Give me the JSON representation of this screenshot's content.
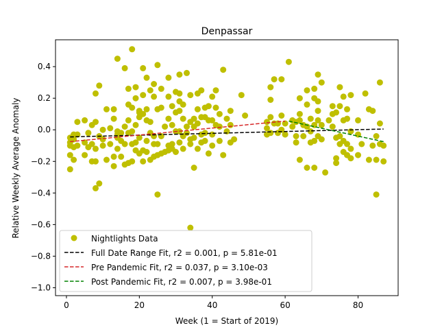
{
  "chart_data": {
    "type": "scatter",
    "title": "Denpassar",
    "xlabel": "Week (1 = Start of 2019)",
    "ylabel": "Relative Weekly Average Anomaly",
    "xlim": [
      -3,
      91
    ],
    "ylim": [
      -1.05,
      0.57
    ],
    "xticks": [
      0,
      20,
      40,
      60,
      80
    ],
    "yticks": [
      -1.0,
      -0.8,
      -0.6,
      -0.4,
      -0.2,
      0.0,
      0.2,
      0.4
    ],
    "ytick_labels": [
      "−1.0",
      "−0.8",
      "−0.6",
      "−0.4",
      "−0.2",
      "0.0",
      "0.2",
      "0.4"
    ],
    "grid": false,
    "legend_position": "bottom-left",
    "scatter_series": {
      "name": "Nightlights Data",
      "color": "#bfbf00",
      "points": [
        [
          1,
          -0.25
        ],
        [
          1,
          -0.16
        ],
        [
          1,
          -0.08
        ],
        [
          1,
          -0.05
        ],
        [
          1,
          -0.1
        ],
        [
          2,
          -0.03
        ],
        [
          2,
          -0.06
        ],
        [
          2,
          -0.19
        ],
        [
          2,
          -0.11
        ],
        [
          3,
          0.05
        ],
        [
          3,
          -0.03
        ],
        [
          3,
          -0.1
        ],
        [
          5,
          -0.08
        ],
        [
          5,
          -0.16
        ],
        [
          5,
          0.06
        ],
        [
          6,
          -0.02
        ],
        [
          6,
          -0.11
        ],
        [
          7,
          -0.2
        ],
        [
          7,
          0.03
        ],
        [
          7,
          -0.09
        ],
        [
          8,
          0.23
        ],
        [
          8,
          -0.2
        ],
        [
          8,
          -0.37
        ],
        [
          8,
          0.05
        ],
        [
          8,
          -0.12
        ],
        [
          9,
          0.28
        ],
        [
          9,
          -0.34
        ],
        [
          9,
          -0.04
        ],
        [
          10,
          -0.1
        ],
        [
          10,
          -0.06
        ],
        [
          10,
          0.0
        ],
        [
          11,
          0.13
        ],
        [
          11,
          -0.19
        ],
        [
          12,
          -0.09
        ],
        [
          12,
          0.01
        ],
        [
          13,
          0.07
        ],
        [
          13,
          0.13
        ],
        [
          13,
          -0.23
        ],
        [
          13,
          -0.17
        ],
        [
          14,
          0.45
        ],
        [
          14,
          -0.01
        ],
        [
          14,
          -0.03
        ],
        [
          14,
          -0.05
        ],
        [
          14,
          -0.12
        ],
        [
          15,
          -0.07
        ],
        [
          15,
          -0.17
        ],
        [
          15,
          -0.02
        ],
        [
          16,
          0.39
        ],
        [
          16,
          0.02
        ],
        [
          16,
          -0.22
        ],
        [
          16,
          -0.09
        ],
        [
          17,
          0.26
        ],
        [
          17,
          0.16
        ],
        [
          17,
          0.06
        ],
        [
          17,
          -0.21
        ],
        [
          17,
          -0.02
        ],
        [
          18,
          0.51
        ],
        [
          18,
          0.14
        ],
        [
          18,
          -0.01
        ],
        [
          18,
          -0.09
        ],
        [
          18,
          -0.2
        ],
        [
          19,
          0.27
        ],
        [
          19,
          0.2
        ],
        [
          19,
          0.03
        ],
        [
          19,
          -0.13
        ],
        [
          19,
          -0.08
        ],
        [
          20,
          0.12
        ],
        [
          20,
          0.11
        ],
        [
          20,
          0.08
        ],
        [
          20,
          -0.05
        ],
        [
          20,
          -0.15
        ],
        [
          21,
          0.39
        ],
        [
          21,
          0.22
        ],
        [
          21,
          0.1
        ],
        [
          21,
          -0.2
        ],
        [
          21,
          -0.13
        ],
        [
          22,
          0.33
        ],
        [
          22,
          0.13
        ],
        [
          22,
          0.06
        ],
        [
          22,
          -0.07
        ],
        [
          22,
          -0.14
        ],
        [
          23,
          0.25
        ],
        [
          23,
          0.05
        ],
        [
          23,
          -0.02
        ],
        [
          23,
          -0.19
        ],
        [
          24,
          0.29
        ],
        [
          24,
          0.21
        ],
        [
          24,
          -0.04
        ],
        [
          24,
          -0.17
        ],
        [
          24,
          -0.09
        ],
        [
          25,
          0.41
        ],
        [
          25,
          0.13
        ],
        [
          25,
          -0.16
        ],
        [
          25,
          -0.41
        ],
        [
          25,
          -0.09
        ],
        [
          26,
          0.26
        ],
        [
          26,
          0.14
        ],
        [
          26,
          -0.04
        ],
        [
          26,
          -0.15
        ],
        [
          27,
          0.02
        ],
        [
          27,
          -0.14
        ],
        [
          28,
          0.33
        ],
        [
          28,
          0.21
        ],
        [
          28,
          0.07
        ],
        [
          28,
          -0.1
        ],
        [
          28,
          -0.13
        ],
        [
          29,
          0.15
        ],
        [
          29,
          0.03
        ],
        [
          29,
          -0.09
        ],
        [
          29,
          -0.12
        ],
        [
          30,
          0.24
        ],
        [
          30,
          0.11
        ],
        [
          30,
          -0.01
        ],
        [
          30,
          -0.14
        ],
        [
          31,
          0.35
        ],
        [
          31,
          0.23
        ],
        [
          31,
          0.18
        ],
        [
          31,
          0.12
        ],
        [
          31,
          -0.01
        ],
        [
          31,
          -0.08
        ],
        [
          32,
          0.16
        ],
        [
          32,
          0.07
        ],
        [
          32,
          -0.04
        ],
        [
          32,
          -0.12
        ],
        [
          33,
          0.36
        ],
        [
          33,
          0.02
        ],
        [
          33,
          -0.02
        ],
        [
          34,
          0.22
        ],
        [
          34,
          0.05
        ],
        [
          34,
          -0.06
        ],
        [
          34,
          -0.09
        ],
        [
          34,
          -0.62
        ],
        [
          35,
          0.07
        ],
        [
          35,
          0.02
        ],
        [
          35,
          -0.05
        ],
        [
          35,
          -0.24
        ],
        [
          36,
          0.23
        ],
        [
          36,
          0.13
        ],
        [
          36,
          0.04
        ],
        [
          36,
          -0.12
        ],
        [
          37,
          0.25
        ],
        [
          37,
          0.08
        ],
        [
          37,
          -0.03
        ],
        [
          37,
          -0.08
        ],
        [
          38,
          0.14
        ],
        [
          38,
          0.08
        ],
        [
          38,
          -0.02
        ],
        [
          38,
          -0.07
        ],
        [
          39,
          0.15
        ],
        [
          39,
          0.06
        ],
        [
          39,
          -0.15
        ],
        [
          40,
          0.21
        ],
        [
          40,
          0.06
        ],
        [
          40,
          -0.03
        ],
        [
          40,
          -0.1
        ],
        [
          41,
          0.25
        ],
        [
          41,
          0.14
        ],
        [
          41,
          0.03
        ],
        [
          42,
          0.1
        ],
        [
          42,
          0.02
        ],
        [
          42,
          -0.07
        ],
        [
          43,
          0.38
        ],
        [
          43,
          -0.16
        ],
        [
          44,
          0.07
        ],
        [
          44,
          -0.01
        ],
        [
          45,
          0.12
        ],
        [
          45,
          0.03
        ],
        [
          45,
          -0.08
        ],
        [
          46,
          -0.06
        ],
        [
          48,
          0.22
        ],
        [
          49,
          0.09
        ],
        [
          55,
          0.01
        ],
        [
          55,
          0.05
        ],
        [
          55,
          -0.03
        ],
        [
          56,
          0.27
        ],
        [
          56,
          0.19
        ],
        [
          56,
          0.08
        ],
        [
          56,
          -0.02
        ],
        [
          57,
          0.32
        ],
        [
          57,
          0.04
        ],
        [
          58,
          0.04
        ],
        [
          58,
          -0.02
        ],
        [
          59,
          0.32
        ],
        [
          59,
          0.09
        ],
        [
          59,
          0.0
        ],
        [
          60,
          0.04
        ],
        [
          60,
          -0.03
        ],
        [
          61,
          0.43
        ],
        [
          62,
          0.06
        ],
        [
          62,
          0.02
        ],
        [
          63,
          0.05
        ],
        [
          63,
          -0.04
        ],
        [
          63,
          -0.08
        ],
        [
          64,
          0.2
        ],
        [
          64,
          0.1
        ],
        [
          64,
          0.06
        ],
        [
          64,
          -0.19
        ],
        [
          65,
          0.03
        ],
        [
          65,
          -0.04
        ],
        [
          66,
          0.25
        ],
        [
          66,
          0.16
        ],
        [
          66,
          0.02
        ],
        [
          66,
          -0.24
        ],
        [
          67,
          0.07
        ],
        [
          67,
          -0.08
        ],
        [
          67,
          -0.01
        ],
        [
          68,
          0.26
        ],
        [
          68,
          0.2
        ],
        [
          68,
          0.03
        ],
        [
          68,
          -0.07
        ],
        [
          68,
          -0.24
        ],
        [
          69,
          0.35
        ],
        [
          69,
          0.18
        ],
        [
          69,
          0.12
        ],
        [
          69,
          0.06
        ],
        [
          69,
          -0.04
        ],
        [
          70,
          0.3
        ],
        [
          70,
          0.03
        ],
        [
          70,
          -0.06
        ],
        [
          71,
          -0.27
        ],
        [
          72,
          0.06
        ],
        [
          73,
          0.1
        ],
        [
          73,
          0.15
        ],
        [
          73,
          0.02
        ],
        [
          74,
          0.11
        ],
        [
          74,
          -0.05
        ],
        [
          74,
          -0.18
        ],
        [
          74,
          -0.21
        ],
        [
          75,
          0.27
        ],
        [
          75,
          0.15
        ],
        [
          75,
          -0.04
        ],
        [
          75,
          -0.09
        ],
        [
          76,
          0.21
        ],
        [
          76,
          0.06
        ],
        [
          76,
          -0.07
        ],
        [
          76,
          -0.14
        ],
        [
          77,
          0.13
        ],
        [
          77,
          0.07
        ],
        [
          77,
          -0.09
        ],
        [
          77,
          -0.16
        ],
        [
          78,
          0.22
        ],
        [
          78,
          -0.01
        ],
        [
          78,
          -0.12
        ],
        [
          78,
          -0.18
        ],
        [
          80,
          0.06
        ],
        [
          80,
          -0.03
        ],
        [
          80,
          -0.16
        ],
        [
          81,
          -0.09
        ],
        [
          82,
          0.23
        ],
        [
          83,
          0.13
        ],
        [
          83,
          -0.19
        ],
        [
          84,
          0.12
        ],
        [
          84,
          -0.1
        ],
        [
          85,
          -0.19
        ],
        [
          85,
          -0.41
        ],
        [
          85,
          -0.04
        ],
        [
          86,
          0.3
        ],
        [
          86,
          0.04
        ],
        [
          86,
          -0.09
        ],
        [
          87,
          -0.1
        ],
        [
          87,
          -0.2
        ]
      ]
    },
    "fit_lines": [
      {
        "name": "Full Date Range Fit, r2 = 0.001, p = 5.81e-01",
        "color": "#000000",
        "x": [
          1,
          87
        ],
        "y": [
          -0.045,
          0.005
        ]
      },
      {
        "name": "Pre Pandemic Fit, r2 = 0.037, p = 3.10e-03",
        "color": "#d62728",
        "x": [
          1,
          60
        ],
        "y": [
          -0.075,
          0.055
        ]
      },
      {
        "name": "Post Pandemic Fit, r2 = 0.007, p = 3.98e-01",
        "color": "#008000",
        "x": [
          61,
          87
        ],
        "y": [
          0.055,
          -0.075
        ]
      }
    ]
  }
}
